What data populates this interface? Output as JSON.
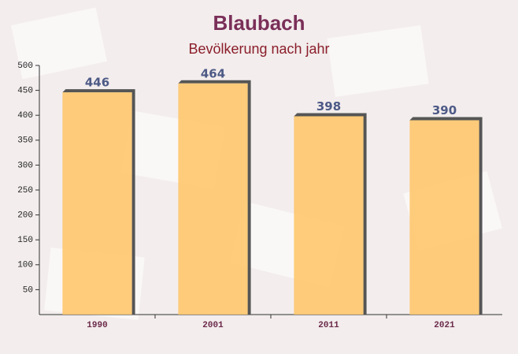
{
  "chart_data": {
    "type": "bar",
    "title": "Blaubach",
    "subtitle": "Bevölkerung nach jahr",
    "categories": [
      "1990",
      "2001",
      "2011",
      "2021"
    ],
    "values": [
      446,
      464,
      398,
      390
    ],
    "color": "#fec66b",
    "ylim": [
      0,
      500
    ],
    "yticks": [
      50,
      100,
      150,
      200,
      250,
      300,
      350,
      400,
      450,
      500
    ],
    "grid": false
  }
}
